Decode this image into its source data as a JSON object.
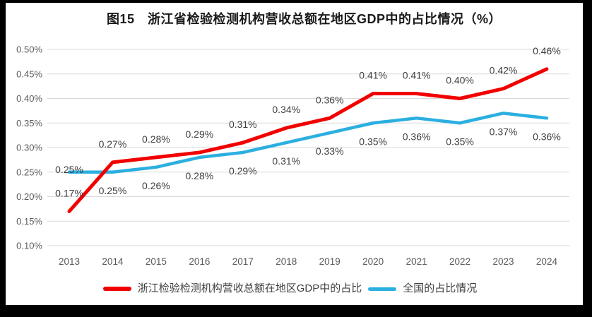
{
  "title": "图15　浙江省检验检测机构营收总额在地区GDP中的占比情况（%）",
  "colors": {
    "frame": "#000000",
    "background": "#ffffff",
    "gridline": "#d9d9d9",
    "axis_text": "#595959",
    "data_label_text": "#3f3f3f",
    "zhejiang_red": "#f20000",
    "national_blue": "#2bafe0"
  },
  "chart_data": {
    "type": "line",
    "categories": [
      "2013",
      "2014",
      "2015",
      "2016",
      "2017",
      "2018",
      "2019",
      "2020",
      "2021",
      "2022",
      "2023",
      "2024"
    ],
    "series": [
      {
        "name": "浙江检验检测机构营收总额在地区GDP中的占比",
        "color": "#f20000",
        "values": [
          0.17,
          0.27,
          0.28,
          0.29,
          0.31,
          0.34,
          0.36,
          0.41,
          0.41,
          0.4,
          0.42,
          0.46
        ],
        "labels": [
          "0.17%",
          "0.27%",
          "0.28%",
          "0.29%",
          "0.31%",
          "0.34%",
          "0.36%",
          "0.41%",
          "0.41%",
          "0.40%",
          "0.42%",
          "0.46%"
        ],
        "label_position": "above"
      },
      {
        "name": "全国的占比情况",
        "color": "#2bafe0",
        "values": [
          0.25,
          0.25,
          0.26,
          0.28,
          0.29,
          0.31,
          0.33,
          0.35,
          0.36,
          0.35,
          0.37,
          0.36
        ],
        "labels": [
          "0.25%",
          "0.25%",
          "0.26%",
          "0.28%",
          "0.29%",
          "0.31%",
          "0.33%",
          "0.35%",
          "0.36%",
          "0.35%",
          "0.37%",
          "0.36%"
        ],
        "label_position": "below-except-first"
      }
    ],
    "ylim": [
      0.1,
      0.5
    ],
    "ytick_step": 0.05,
    "y_ticks": [
      "0.50%",
      "0.45%",
      "0.40%",
      "0.35%",
      "0.30%",
      "0.25%",
      "0.20%",
      "0.15%",
      "0.10%"
    ],
    "xlabel": "",
    "ylabel": "",
    "grid": true,
    "legend_position": "bottom"
  }
}
